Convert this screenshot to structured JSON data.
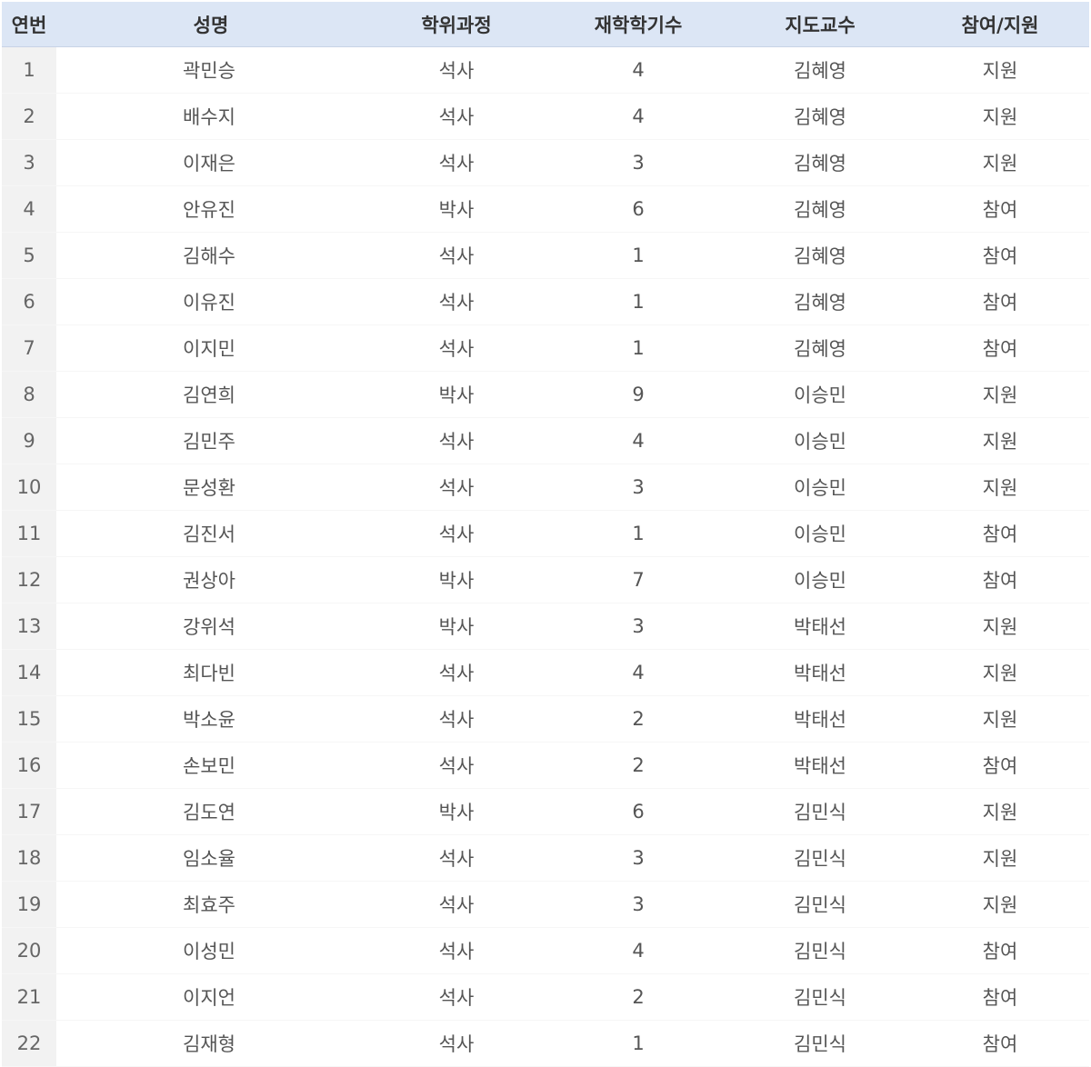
{
  "table": {
    "headers": [
      "연번",
      "성명",
      "학위과정",
      "재학학기수",
      "지도교수",
      "참여/지원"
    ],
    "rows": [
      {
        "no": "1",
        "name": "곽민승",
        "degree": "석사",
        "semesters": "4",
        "advisor": "김혜영",
        "role": "지원"
      },
      {
        "no": "2",
        "name": "배수지",
        "degree": "석사",
        "semesters": "4",
        "advisor": "김혜영",
        "role": "지원"
      },
      {
        "no": "3",
        "name": "이재은",
        "degree": "석사",
        "semesters": "3",
        "advisor": "김혜영",
        "role": "지원"
      },
      {
        "no": "4",
        "name": "안유진",
        "degree": "박사",
        "semesters": "6",
        "advisor": "김혜영",
        "role": "참여"
      },
      {
        "no": "5",
        "name": "김해수",
        "degree": "석사",
        "semesters": "1",
        "advisor": "김혜영",
        "role": "참여"
      },
      {
        "no": "6",
        "name": "이유진",
        "degree": "석사",
        "semesters": "1",
        "advisor": "김혜영",
        "role": "참여"
      },
      {
        "no": "7",
        "name": "이지민",
        "degree": "석사",
        "semesters": "1",
        "advisor": "김혜영",
        "role": "참여"
      },
      {
        "no": "8",
        "name": "김연희",
        "degree": "박사",
        "semesters": "9",
        "advisor": "이승민",
        "role": "지원"
      },
      {
        "no": "9",
        "name": "김민주",
        "degree": "석사",
        "semesters": "4",
        "advisor": "이승민",
        "role": "지원"
      },
      {
        "no": "10",
        "name": "문성환",
        "degree": "석사",
        "semesters": "3",
        "advisor": "이승민",
        "role": "지원"
      },
      {
        "no": "11",
        "name": "김진서",
        "degree": "석사",
        "semesters": "1",
        "advisor": "이승민",
        "role": "참여"
      },
      {
        "no": "12",
        "name": "권상아",
        "degree": "박사",
        "semesters": "7",
        "advisor": "이승민",
        "role": "참여"
      },
      {
        "no": "13",
        "name": "강위석",
        "degree": "박사",
        "semesters": "3",
        "advisor": "박태선",
        "role": "지원"
      },
      {
        "no": "14",
        "name": "최다빈",
        "degree": "석사",
        "semesters": "4",
        "advisor": "박태선",
        "role": "지원"
      },
      {
        "no": "15",
        "name": "박소윤",
        "degree": "석사",
        "semesters": "2",
        "advisor": "박태선",
        "role": "지원"
      },
      {
        "no": "16",
        "name": "손보민",
        "degree": "석사",
        "semesters": "2",
        "advisor": "박태선",
        "role": "참여"
      },
      {
        "no": "17",
        "name": "김도연",
        "degree": "박사",
        "semesters": "6",
        "advisor": "김민식",
        "role": "지원"
      },
      {
        "no": "18",
        "name": "임소율",
        "degree": "석사",
        "semesters": "3",
        "advisor": "김민식",
        "role": "지원"
      },
      {
        "no": "19",
        "name": "최효주",
        "degree": "석사",
        "semesters": "3",
        "advisor": "김민식",
        "role": "지원"
      },
      {
        "no": "20",
        "name": "이성민",
        "degree": "석사",
        "semesters": "4",
        "advisor": "김민식",
        "role": "참여"
      },
      {
        "no": "21",
        "name": "이지언",
        "degree": "석사",
        "semesters": "2",
        "advisor": "김민식",
        "role": "참여"
      },
      {
        "no": "22",
        "name": "김재형",
        "degree": "석사",
        "semesters": "1",
        "advisor": "김민식",
        "role": "참여"
      }
    ]
  },
  "colors": {
    "header_bg": "#dce6f5",
    "number_column_bg": "#f2f2f2",
    "text": "#555555"
  }
}
